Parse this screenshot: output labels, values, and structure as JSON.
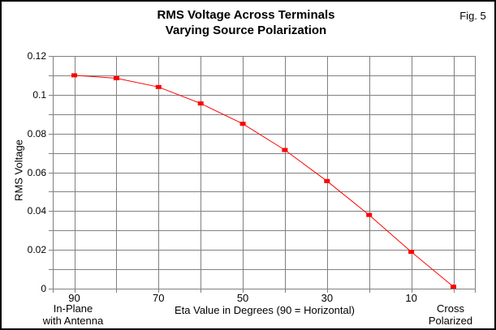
{
  "chart_data": {
    "type": "line",
    "title": "RMS Voltage Across Terminals",
    "subtitle": "Varying Source Polarization",
    "fig_label": "Fig. 5",
    "xlabel": "Eta Value in Degrees (90 = Horizontal)",
    "ylabel": "RMS Voltage",
    "x": [
      90,
      80,
      70,
      60,
      50,
      40,
      30,
      20,
      10,
      0
    ],
    "values": [
      0.11,
      0.1085,
      0.104,
      0.0955,
      0.085,
      0.0715,
      0.0555,
      0.038,
      0.019,
      0.001
    ],
    "x_tick_labels": [
      "90",
      "",
      "70",
      "",
      "50",
      "",
      "30",
      "",
      "10",
      ""
    ],
    "y_tick_values": [
      0.12,
      0.1,
      0.08,
      0.06,
      0.04,
      0.02,
      0
    ],
    "y_tick_labels": [
      "0.12",
      "0.1",
      "0.08",
      "0.06",
      "0.04",
      "0.02",
      "0"
    ],
    "y_minor_step": 0.01,
    "ylim": [
      0,
      0.12
    ],
    "grid": "on",
    "legend": "none",
    "marker": "square",
    "x_start_label": {
      "lines": [
        "In-Plane",
        "with Antenna"
      ]
    },
    "x_end_label": {
      "lines": [
        "Cross",
        "Polarized"
      ]
    },
    "colors": {
      "line": "#FF0000",
      "marker": "#FF0000",
      "grid": "#808080",
      "text": "#000000",
      "background": "#FFFFFF",
      "border": "#000000"
    }
  }
}
